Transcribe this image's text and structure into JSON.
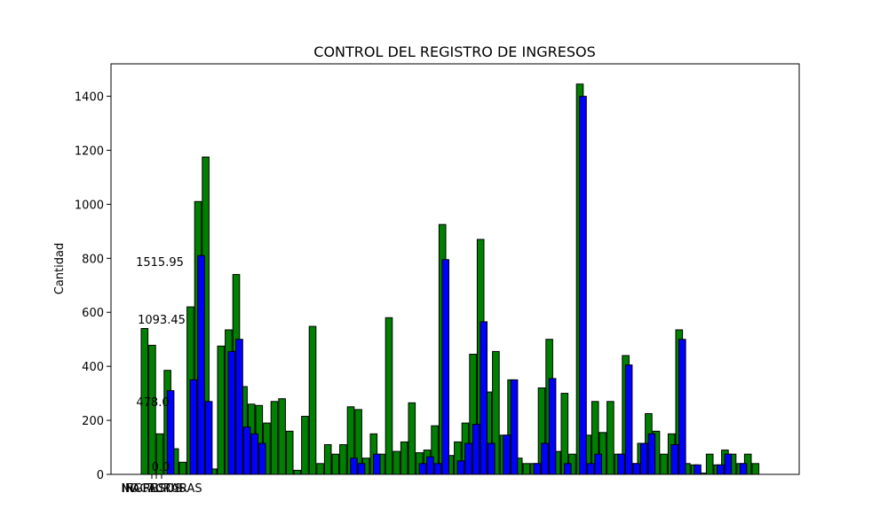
{
  "chart_data": {
    "type": "bar",
    "title": "CONTROL DEL REGISTRO DE INGRESOS",
    "xlabel": "",
    "ylabel": "Cantidad",
    "ylim": [
      0,
      1520
    ],
    "yticks": [
      0,
      200,
      400,
      600,
      800,
      1000,
      1200,
      1400
    ],
    "grid": false,
    "x_tick_labels": [
      "INGRESOS",
      "FACTURAS",
      "NO FACTURAS"
    ],
    "annotations": [
      "1515.95",
      "1093.45",
      "478.0",
      "0.0"
    ],
    "colors": {
      "series_a": "#008000",
      "series_b": "#0000ff"
    },
    "series": [
      {
        "color": "#008000",
        "values": [
          540,
          478,
          150,
          385,
          95,
          45,
          620,
          1010,
          1175,
          20,
          475,
          535,
          740,
          325,
          260,
          255,
          190,
          270,
          280,
          160,
          15,
          215,
          548,
          40,
          110,
          75,
          110,
          250,
          240,
          60,
          150,
          75,
          580,
          85,
          120,
          265,
          80,
          90,
          180,
          925,
          70,
          120,
          190,
          445,
          870,
          305,
          455,
          145,
          350,
          60,
          40,
          40,
          320,
          500,
          85,
          300,
          75,
          1445,
          145,
          270,
          155,
          270,
          75,
          440,
          40,
          115,
          225,
          160,
          75,
          150,
          535,
          40,
          35,
          5,
          75,
          35,
          90,
          75,
          40,
          75,
          40
        ]
      },
      {
        "color": "#0000ff",
        "values": [
          0,
          0,
          0,
          310,
          0,
          0,
          350,
          810,
          270,
          0,
          0,
          455,
          500,
          175,
          150,
          115,
          0,
          0,
          0,
          0,
          0,
          0,
          0,
          0,
          0,
          0,
          0,
          60,
          40,
          0,
          75,
          0,
          0,
          0,
          0,
          0,
          40,
          65,
          40,
          795,
          0,
          50,
          115,
          185,
          565,
          115,
          0,
          145,
          350,
          0,
          0,
          40,
          115,
          355,
          0,
          40,
          0,
          1400,
          40,
          75,
          0,
          0,
          75,
          405,
          40,
          115,
          150,
          0,
          0,
          110,
          500,
          0,
          35,
          0,
          0,
          35,
          75,
          0,
          40,
          0,
          0
        ]
      }
    ]
  }
}
